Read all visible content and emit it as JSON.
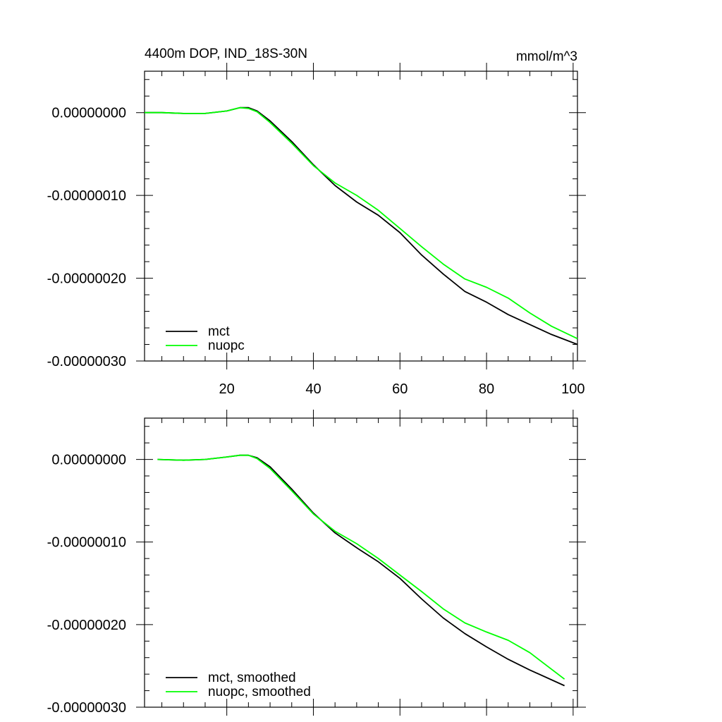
{
  "chart_data": [
    {
      "type": "line",
      "title": "4400m DOP, IND_18S-30N",
      "units": "mmol/m^3",
      "xlim": [
        1,
        101
      ],
      "ylim": [
        -3e-07,
        5e-08
      ],
      "x_ticks": [
        20,
        40,
        60,
        80,
        100
      ],
      "x_tick_labels": [
        "20",
        "40",
        "60",
        "80",
        "100"
      ],
      "y_ticks": [
        0,
        -1e-07,
        -2e-07,
        -3e-07
      ],
      "y_tick_labels": [
        "0.00000000",
        "-0.00000010",
        "-0.00000020",
        "-0.00000030"
      ],
      "legend_position": "bottom-left",
      "series": [
        {
          "name": "mct",
          "color": "#000000",
          "x": [
            1,
            5,
            10,
            15,
            20,
            23,
            25,
            27,
            30,
            35,
            40,
            45,
            50,
            55,
            60,
            65,
            70,
            75,
            80,
            85,
            90,
            95,
            101
          ],
          "y": [
            0,
            0,
            -1e-09,
            -1e-09,
            2e-09,
            6e-09,
            6e-09,
            2e-09,
            -1e-08,
            -3.5e-08,
            -6.3e-08,
            -8.8e-08,
            -1.08e-07,
            -1.24e-07,
            -1.45e-07,
            -1.72e-07,
            -1.95e-07,
            -2.16e-07,
            -2.29e-07,
            -2.44e-07,
            -2.56e-07,
            -2.68e-07,
            -2.8e-07
          ]
        },
        {
          "name": "nuopc",
          "color": "#00ff00",
          "x": [
            1,
            5,
            10,
            15,
            20,
            23,
            25,
            27,
            30,
            35,
            40,
            45,
            50,
            55,
            60,
            65,
            70,
            75,
            80,
            85,
            90,
            95,
            101
          ],
          "y": [
            0,
            0,
            -1e-09,
            -1e-09,
            2e-09,
            6e-09,
            5e-09,
            1e-09,
            -1.2e-08,
            -3.7e-08,
            -6.4e-08,
            -8.5e-08,
            -1e-07,
            -1.18e-07,
            -1.4e-07,
            -1.62e-07,
            -1.83e-07,
            -2.01e-07,
            -2.11e-07,
            -2.24e-07,
            -2.42e-07,
            -2.58e-07,
            -2.73e-07
          ]
        }
      ]
    },
    {
      "type": "line",
      "xlim": [
        1,
        101
      ],
      "ylim": [
        -3e-07,
        5e-08
      ],
      "x_ticks": [
        20,
        40,
        60,
        80,
        100
      ],
      "y_ticks": [
        0,
        -1e-07,
        -2e-07,
        -3e-07
      ],
      "y_tick_labels": [
        "0.00000000",
        "-0.00000010",
        "-0.00000020",
        "-0.00000030"
      ],
      "legend_position": "bottom-left",
      "series": [
        {
          "name": "mct, smoothed",
          "color": "#000000",
          "x": [
            4,
            10,
            15,
            20,
            23,
            25,
            27,
            30,
            35,
            40,
            45,
            50,
            55,
            60,
            65,
            70,
            75,
            80,
            85,
            90,
            98
          ],
          "y": [
            0,
            -1e-09,
            0,
            3e-09,
            5e-09,
            5e-09,
            2e-09,
            -9e-09,
            -3.6e-08,
            -6.5e-08,
            -8.9e-08,
            -1.07e-07,
            -1.24e-07,
            -1.44e-07,
            -1.69e-07,
            -1.92e-07,
            -2.11e-07,
            -2.27e-07,
            -2.42e-07,
            -2.55e-07,
            -2.74e-07
          ]
        },
        {
          "name": "nuopc, smoothed",
          "color": "#00ff00",
          "x": [
            4,
            10,
            15,
            20,
            23,
            25,
            27,
            30,
            35,
            40,
            45,
            50,
            55,
            60,
            65,
            70,
            75,
            80,
            85,
            90,
            98
          ],
          "y": [
            0,
            -1e-09,
            0,
            3e-09,
            5e-09,
            5e-09,
            1e-09,
            -1.1e-08,
            -3.8e-08,
            -6.6e-08,
            -8.7e-08,
            -1.02e-07,
            -1.2e-07,
            -1.4e-07,
            -1.6e-07,
            -1.81e-07,
            -1.98e-07,
            -2.09e-07,
            -2.19e-07,
            -2.34e-07,
            -2.66e-07
          ]
        }
      ]
    }
  ]
}
